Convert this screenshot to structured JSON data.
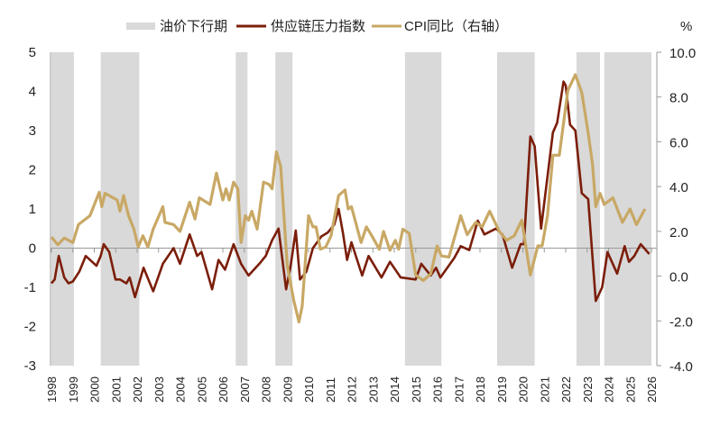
{
  "chart_data": {
    "type": "line",
    "title": "",
    "unit_right": "%",
    "legend": {
      "position": "top",
      "items": [
        {
          "label": "油价下行期",
          "kind": "band",
          "color": "#d9d9d9"
        },
        {
          "label": "供应链压力指数",
          "kind": "line",
          "color": "#7b1e0a"
        },
        {
          "label": "CPI同比（右轴）",
          "kind": "line",
          "color": "#c8a865"
        }
      ]
    },
    "x_ticks": [
      "1998",
      "1999",
      "2000",
      "2001",
      "2002",
      "2003",
      "2004",
      "2005",
      "2006",
      "2007",
      "2008",
      "2009",
      "2010",
      "2011",
      "2012",
      "2013",
      "2014",
      "2015",
      "2016",
      "2017",
      "2018",
      "2019",
      "2020",
      "2021",
      "2022",
      "2023",
      "2024",
      "2025",
      "2026"
    ],
    "xlim": [
      1998,
      2026
    ],
    "y_left": {
      "ylim": [
        -3,
        5
      ],
      "ticks": [
        "5",
        "4",
        "3",
        "2",
        "1",
        "0",
        "-1",
        "-2",
        "-3"
      ]
    },
    "y_right": {
      "ylim": [
        -4,
        10
      ],
      "ticks": [
        "10.0",
        "8.0",
        "6.0",
        "4.0",
        "2.0",
        "0.0",
        "-2.0",
        "-4.0"
      ]
    },
    "shaded_periods": [
      [
        1998.0,
        1999.05
      ],
      [
        2000.3,
        2002.1
      ],
      [
        2006.6,
        2007.15
      ],
      [
        2008.45,
        2009.25
      ],
      [
        2014.5,
        2016.2
      ],
      [
        2018.8,
        2020.55
      ],
      [
        2022.5,
        2023.6
      ],
      [
        2023.8,
        2026.0
      ]
    ],
    "series": [
      {
        "name": "供应链压力指数",
        "axis": "left",
        "color": "#7b1e0a",
        "points": [
          [
            1998.0,
            -0.9
          ],
          [
            1998.15,
            -0.8
          ],
          [
            1998.34,
            -0.2
          ],
          [
            1998.6,
            -0.75
          ],
          [
            1998.8,
            -0.9
          ],
          [
            1999.0,
            -0.85
          ],
          [
            1999.3,
            -0.6
          ],
          [
            1999.6,
            -0.2
          ],
          [
            1999.9,
            -0.35
          ],
          [
            2000.1,
            -0.45
          ],
          [
            2000.3,
            -0.2
          ],
          [
            2000.44,
            0.1
          ],
          [
            2000.7,
            -0.1
          ],
          [
            2000.99,
            -0.8
          ],
          [
            2001.2,
            -0.8
          ],
          [
            2001.5,
            -0.9
          ],
          [
            2001.65,
            -0.75
          ],
          [
            2001.9,
            -1.25
          ],
          [
            2002.3,
            -0.5
          ],
          [
            2002.75,
            -1.1
          ],
          [
            2003.2,
            -0.4
          ],
          [
            2003.7,
            0.0
          ],
          [
            2004.0,
            -0.4
          ],
          [
            2004.45,
            0.35
          ],
          [
            2004.8,
            -0.2
          ],
          [
            2005.0,
            -0.1
          ],
          [
            2005.5,
            -1.05
          ],
          [
            2005.8,
            -0.3
          ],
          [
            2006.1,
            -0.55
          ],
          [
            2006.5,
            0.1
          ],
          [
            2006.85,
            -0.4
          ],
          [
            2007.2,
            -0.7
          ],
          [
            2007.7,
            -0.4
          ],
          [
            2008.0,
            -0.2
          ],
          [
            2008.3,
            0.2
          ],
          [
            2008.6,
            0.5
          ],
          [
            2008.95,
            -1.05
          ],
          [
            2009.15,
            -0.5
          ],
          [
            2009.4,
            0.45
          ],
          [
            2009.6,
            -0.8
          ],
          [
            2009.9,
            -0.6
          ],
          [
            2010.2,
            0.0
          ],
          [
            2010.6,
            0.3
          ],
          [
            2010.9,
            0.4
          ],
          [
            2011.2,
            0.6
          ],
          [
            2011.4,
            1.0
          ],
          [
            2011.6,
            0.4
          ],
          [
            2011.8,
            -0.3
          ],
          [
            2012.0,
            0.15
          ],
          [
            2012.5,
            -0.7
          ],
          [
            2012.8,
            -0.2
          ],
          [
            2013.4,
            -0.75
          ],
          [
            2013.8,
            -0.35
          ],
          [
            2014.3,
            -0.75
          ],
          [
            2015.0,
            -0.8
          ],
          [
            2015.26,
            -0.4
          ],
          [
            2015.7,
            -0.7
          ],
          [
            2015.95,
            -0.5
          ],
          [
            2016.15,
            -0.75
          ],
          [
            2016.8,
            -0.25
          ],
          [
            2017.1,
            0.05
          ],
          [
            2017.5,
            -0.05
          ],
          [
            2017.9,
            0.7
          ],
          [
            2018.2,
            0.35
          ],
          [
            2018.75,
            0.5
          ],
          [
            2019.05,
            0.35
          ],
          [
            2019.5,
            -0.5
          ],
          [
            2019.9,
            0.1
          ],
          [
            2020.05,
            0.1
          ],
          [
            2020.35,
            2.85
          ],
          [
            2020.55,
            2.6
          ],
          [
            2020.85,
            0.5
          ],
          [
            2021.4,
            2.95
          ],
          [
            2021.6,
            3.2
          ],
          [
            2021.9,
            4.25
          ],
          [
            2022.0,
            4.15
          ],
          [
            2022.2,
            3.15
          ],
          [
            2022.45,
            3.0
          ],
          [
            2022.75,
            1.4
          ],
          [
            2023.05,
            1.25
          ],
          [
            2023.4,
            -1.35
          ],
          [
            2023.7,
            -1.0
          ],
          [
            2023.95,
            -0.1
          ],
          [
            2024.4,
            -0.65
          ],
          [
            2024.75,
            0.05
          ],
          [
            2024.95,
            -0.35
          ],
          [
            2025.2,
            -0.2
          ],
          [
            2025.5,
            0.1
          ],
          [
            2025.9,
            -0.15
          ]
        ]
      },
      {
        "name": "CPI同比（右轴）",
        "axis": "right",
        "color": "#c8a865",
        "points": [
          [
            1998.0,
            1.75
          ],
          [
            1998.3,
            1.4
          ],
          [
            1998.6,
            1.7
          ],
          [
            1999.0,
            1.5
          ],
          [
            1999.26,
            2.3
          ],
          [
            1999.8,
            2.7
          ],
          [
            2000.23,
            3.75
          ],
          [
            2000.35,
            3.1
          ],
          [
            2000.5,
            3.7
          ],
          [
            2001.07,
            3.4
          ],
          [
            2001.2,
            2.9
          ],
          [
            2001.37,
            3.6
          ],
          [
            2001.6,
            2.7
          ],
          [
            2001.85,
            2.1
          ],
          [
            2002.05,
            1.3
          ],
          [
            2002.27,
            1.8
          ],
          [
            2002.5,
            1.3
          ],
          [
            2002.75,
            2.1
          ],
          [
            2003.2,
            3.1
          ],
          [
            2003.3,
            2.4
          ],
          [
            2003.7,
            2.3
          ],
          [
            2004.0,
            2.0
          ],
          [
            2004.45,
            3.3
          ],
          [
            2004.7,
            2.55
          ],
          [
            2004.9,
            3.5
          ],
          [
            2005.4,
            3.2
          ],
          [
            2005.7,
            4.6
          ],
          [
            2006.0,
            3.4
          ],
          [
            2006.15,
            3.9
          ],
          [
            2006.3,
            3.4
          ],
          [
            2006.5,
            4.2
          ],
          [
            2006.7,
            3.9
          ],
          [
            2006.85,
            1.5
          ],
          [
            2007.05,
            2.7
          ],
          [
            2007.2,
            2.5
          ],
          [
            2007.35,
            2.9
          ],
          [
            2007.6,
            2.1
          ],
          [
            2007.9,
            4.2
          ],
          [
            2008.15,
            4.1
          ],
          [
            2008.3,
            3.9
          ],
          [
            2008.5,
            5.55
          ],
          [
            2008.7,
            4.9
          ],
          [
            2009.0,
            0.5
          ],
          [
            2009.3,
            -1.05
          ],
          [
            2009.55,
            -2.05
          ],
          [
            2009.7,
            -1.35
          ],
          [
            2010.0,
            2.7
          ],
          [
            2010.2,
            2.2
          ],
          [
            2010.35,
            2.2
          ],
          [
            2010.55,
            1.2
          ],
          [
            2010.8,
            1.3
          ],
          [
            2011.05,
            1.8
          ],
          [
            2011.4,
            3.6
          ],
          [
            2011.7,
            3.85
          ],
          [
            2011.85,
            3.0
          ],
          [
            2012.0,
            3.1
          ],
          [
            2012.45,
            1.5
          ],
          [
            2012.7,
            2.2
          ],
          [
            2012.95,
            1.8
          ],
          [
            2013.3,
            1.2
          ],
          [
            2013.5,
            2.0
          ],
          [
            2013.8,
            1.15
          ],
          [
            2014.05,
            1.6
          ],
          [
            2014.2,
            1.2
          ],
          [
            2014.4,
            2.1
          ],
          [
            2014.7,
            1.9
          ],
          [
            2015.0,
            0.05
          ],
          [
            2015.35,
            -0.2
          ],
          [
            2015.7,
            0.1
          ],
          [
            2016.0,
            1.35
          ],
          [
            2016.2,
            0.9
          ],
          [
            2016.55,
            0.85
          ],
          [
            2017.1,
            2.7
          ],
          [
            2017.4,
            1.85
          ],
          [
            2017.8,
            2.4
          ],
          [
            2018.1,
            2.2
          ],
          [
            2018.45,
            2.9
          ],
          [
            2018.9,
            2.0
          ],
          [
            2019.25,
            1.6
          ],
          [
            2019.6,
            1.8
          ],
          [
            2019.95,
            2.5
          ],
          [
            2020.35,
            0.05
          ],
          [
            2020.7,
            1.35
          ],
          [
            2020.9,
            1.35
          ],
          [
            2021.15,
            2.7
          ],
          [
            2021.4,
            5.4
          ],
          [
            2021.7,
            5.4
          ],
          [
            2022.1,
            8.3
          ],
          [
            2022.45,
            9.0
          ],
          [
            2022.75,
            8.2
          ],
          [
            2023.05,
            6.4
          ],
          [
            2023.25,
            5.0
          ],
          [
            2023.4,
            3.1
          ],
          [
            2023.6,
            3.7
          ],
          [
            2023.8,
            3.2
          ],
          [
            2024.2,
            3.5
          ],
          [
            2024.65,
            2.4
          ],
          [
            2025.0,
            3.0
          ],
          [
            2025.3,
            2.3
          ],
          [
            2025.7,
            3.0
          ]
        ]
      }
    ]
  }
}
